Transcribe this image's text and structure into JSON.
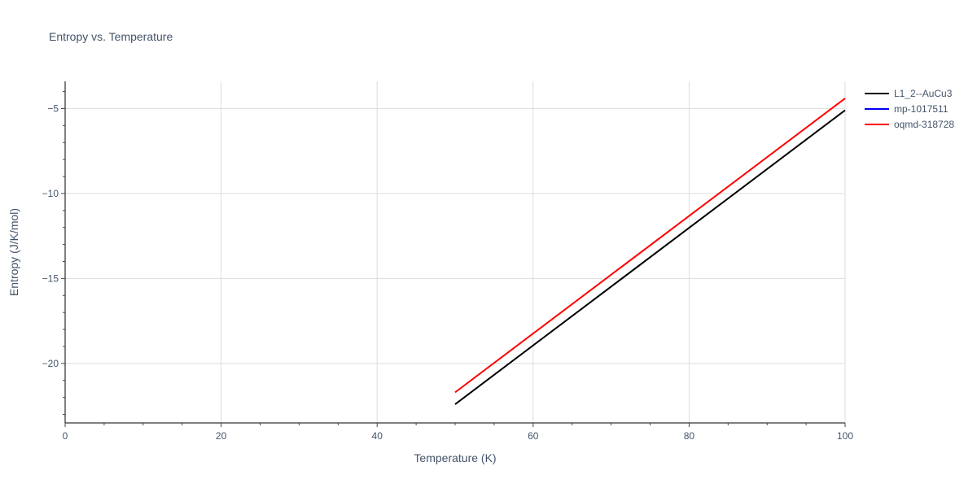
{
  "chart_data": {
    "type": "line",
    "title": "Entropy vs. Temperature",
    "xlabel": "Temperature (K)",
    "ylabel": "Entropy (J/K/mol)",
    "xlim": [
      0,
      100
    ],
    "ylim": [
      -23.5,
      -3.4
    ],
    "x_ticks": [
      0,
      20,
      40,
      60,
      80,
      100
    ],
    "y_ticks": [
      -20,
      -15,
      -10,
      -5
    ],
    "x_tick_labels": [
      "0",
      "20",
      "40",
      "60",
      "80",
      "100"
    ],
    "y_tick_labels": [
      "−20",
      "−15",
      "−10",
      "−5"
    ],
    "grid": true,
    "legend_position": "top-right",
    "series": [
      {
        "name": "L1_2--AuCu3",
        "color": "#000000",
        "x": [
          50,
          100
        ],
        "y": [
          -22.4,
          -5.1
        ]
      },
      {
        "name": "mp-1017511",
        "color": "#0000ff",
        "x": [],
        "y": []
      },
      {
        "name": "oqmd-318728",
        "color": "#ff0000",
        "x": [
          50,
          100
        ],
        "y": [
          -21.7,
          -4.4
        ]
      }
    ]
  }
}
